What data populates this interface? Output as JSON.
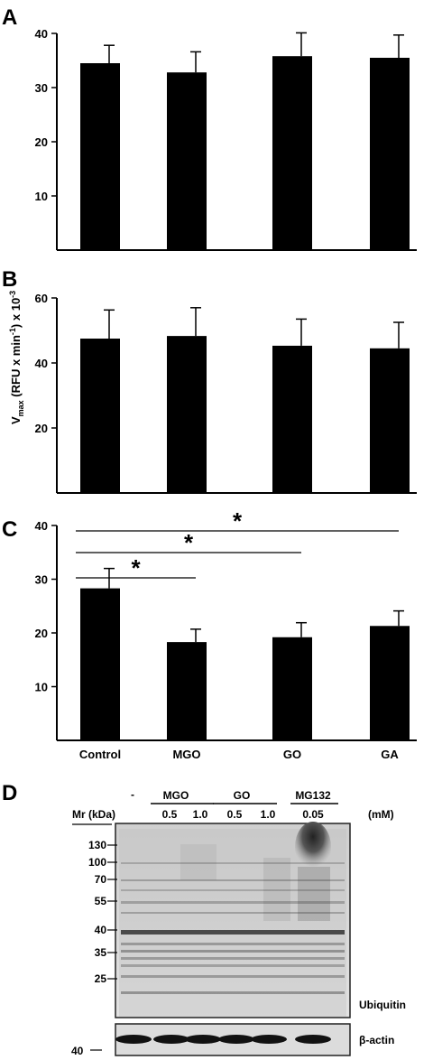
{
  "chart_data": [
    {
      "type": "bar",
      "panel_label": "A",
      "categories": [
        "Control",
        "MGO",
        "GO",
        "GA"
      ],
      "values": [
        34.5,
        32.8,
        35.8,
        35.5
      ],
      "errors": [
        3.3,
        3.8,
        4.3,
        4.2
      ],
      "yticks": [
        10,
        20,
        30,
        40
      ],
      "ylim": [
        0,
        40
      ]
    },
    {
      "type": "bar",
      "panel_label": "B",
      "categories": [
        "Control",
        "MGO",
        "GO",
        "GA"
      ],
      "values": [
        47.5,
        48.3,
        45.3,
        44.5
      ],
      "errors": [
        8.8,
        8.7,
        8.2,
        8.0
      ],
      "yticks": [
        20,
        40,
        60
      ],
      "ylim": [
        0,
        60
      ],
      "ylabel": "V_max (RFU x min^-1) x 10^-3"
    },
    {
      "type": "bar",
      "panel_label": "C",
      "categories": [
        "Control",
        "MGO",
        "GO",
        "GA"
      ],
      "values": [
        28.3,
        18.3,
        19.2,
        21.3
      ],
      "errors": [
        3.7,
        2.4,
        2.7,
        2.8
      ],
      "yticks": [
        10,
        20,
        30,
        40
      ],
      "ylim": [
        0,
        40
      ],
      "xticklabels": [
        "Control",
        "MGO",
        "GO",
        "GA"
      ],
      "significance": [
        {
          "from": "Control",
          "to": "MGO",
          "label": "*"
        },
        {
          "from": "Control",
          "to": "GO",
          "label": "*"
        },
        {
          "from": "Control",
          "to": "GA",
          "label": "*"
        }
      ]
    }
  ],
  "blot": {
    "panel_label": "D",
    "mr_header": "Mr (kDa)",
    "dash": "-",
    "groups": [
      "MGO",
      "GO",
      "MG132"
    ],
    "concentrations": [
      "0.5",
      "1.0",
      "0.5",
      "1.0",
      "0.05"
    ],
    "unit": "(mM)",
    "markers": [
      "130",
      "100",
      "70",
      "55",
      "40",
      "35",
      "25"
    ],
    "actin_marker": "40",
    "ubiquitin_label": "Ubiquitin",
    "actin_label": "β-actin"
  }
}
